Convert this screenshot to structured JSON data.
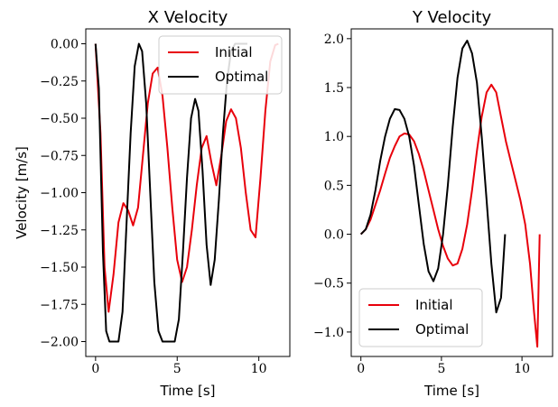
{
  "chart_data": [
    {
      "type": "line",
      "title": "X Velocity",
      "xlabel": "Time [s]",
      "ylabel": "Velocity [m/s]",
      "xlim": [
        -0.6,
        11.9
      ],
      "ylim": [
        -2.1,
        0.1
      ],
      "xticks": [
        0,
        5,
        10
      ],
      "yticks": [
        0.0,
        -0.25,
        -0.5,
        -0.75,
        -1.0,
        -1.25,
        -1.5,
        -1.75,
        -2.0
      ],
      "ytick_labels": [
        "0.00",
        "−0.25",
        "−0.50",
        "−0.75",
        "−1.00",
        "−1.25",
        "−1.50",
        "−1.75",
        "−2.00"
      ],
      "legend": "top-right",
      "series": [
        {
          "name": "Initial",
          "color": "#e8000b",
          "x": [
            0,
            0.3,
            0.55,
            0.8,
            1.1,
            1.4,
            1.7,
            2.0,
            2.3,
            2.6,
            2.9,
            3.2,
            3.5,
            3.8,
            4.1,
            4.4,
            4.7,
            5.0,
            5.3,
            5.6,
            5.9,
            6.2,
            6.5,
            6.8,
            7.1,
            7.4,
            7.7,
            8.0,
            8.3,
            8.6,
            8.9,
            9.2,
            9.5,
            9.8,
            10.1,
            10.4,
            10.7,
            11.0,
            11.2
          ],
          "y": [
            0,
            -0.6,
            -1.5,
            -1.8,
            -1.55,
            -1.2,
            -1.07,
            -1.12,
            -1.22,
            -1.1,
            -0.75,
            -0.4,
            -0.2,
            -0.16,
            -0.35,
            -0.7,
            -1.1,
            -1.45,
            -1.6,
            -1.5,
            -1.25,
            -0.95,
            -0.7,
            -0.62,
            -0.8,
            -0.95,
            -0.75,
            -0.52,
            -0.44,
            -0.5,
            -0.7,
            -1.0,
            -1.25,
            -1.3,
            -0.9,
            -0.45,
            -0.12,
            -0.01,
            0
          ]
        },
        {
          "name": "Optimal",
          "color": "#000000",
          "x": [
            0,
            0.2,
            0.45,
            0.65,
            0.85,
            1.1,
            1.4,
            1.65,
            1.9,
            2.15,
            2.4,
            2.65,
            2.85,
            3.1,
            3.35,
            3.6,
            3.85,
            4.1,
            4.35,
            4.6,
            4.85,
            5.1,
            5.35,
            5.6,
            5.85,
            6.1,
            6.3,
            6.55,
            6.8,
            7.05,
            7.3,
            7.55,
            7.8,
            8.05,
            8.3,
            8.55,
            8.8,
            9.05,
            9.3
          ],
          "y": [
            0,
            -0.3,
            -1.4,
            -1.93,
            -2.0,
            -2.0,
            -2.0,
            -1.8,
            -1.2,
            -0.6,
            -0.15,
            0.0,
            -0.05,
            -0.4,
            -1.0,
            -1.6,
            -1.93,
            -2.0,
            -2.0,
            -2.0,
            -2.0,
            -1.85,
            -1.4,
            -0.9,
            -0.5,
            -0.37,
            -0.45,
            -0.85,
            -1.35,
            -1.62,
            -1.45,
            -1.05,
            -0.6,
            -0.25,
            -0.05,
            0.0,
            0.0,
            0.0,
            0.0
          ]
        }
      ]
    },
    {
      "type": "line",
      "title": "Y Velocity",
      "xlabel": "Time [s]",
      "ylabel": "",
      "xlim": [
        -0.6,
        11.9
      ],
      "ylim": [
        -1.25,
        2.1
      ],
      "xticks": [
        0,
        5,
        10
      ],
      "yticks": [
        2.0,
        1.5,
        1.0,
        0.5,
        0.0,
        -0.5,
        -1.0
      ],
      "ytick_labels": [
        "2.0",
        "1.5",
        "1.0",
        "0.5",
        "0.0",
        "−0.5",
        "−1.0"
      ],
      "legend": "bottom-left",
      "series": [
        {
          "name": "Initial",
          "color": "#e8000b",
          "x": [
            0,
            0.3,
            0.6,
            0.9,
            1.2,
            1.5,
            1.8,
            2.1,
            2.4,
            2.7,
            3.0,
            3.3,
            3.6,
            3.9,
            4.2,
            4.5,
            4.8,
            5.1,
            5.4,
            5.7,
            6.0,
            6.3,
            6.6,
            6.9,
            7.2,
            7.5,
            7.8,
            8.1,
            8.4,
            8.7,
            9.0,
            9.3,
            9.6,
            9.9,
            10.2,
            10.5,
            10.75,
            10.95,
            11.1
          ],
          "y": [
            0,
            0.05,
            0.15,
            0.3,
            0.45,
            0.62,
            0.78,
            0.9,
            1.0,
            1.03,
            1.02,
            0.95,
            0.82,
            0.65,
            0.45,
            0.25,
            0.05,
            -0.12,
            -0.25,
            -0.32,
            -0.3,
            -0.15,
            0.1,
            0.45,
            0.85,
            1.2,
            1.45,
            1.53,
            1.45,
            1.2,
            0.95,
            0.75,
            0.55,
            0.35,
            0.1,
            -0.3,
            -0.8,
            -1.15,
            0.0
          ]
        },
        {
          "name": "Optimal",
          "color": "#000000",
          "x": [
            0,
            0.3,
            0.6,
            0.9,
            1.2,
            1.5,
            1.8,
            2.1,
            2.4,
            2.7,
            3.0,
            3.3,
            3.6,
            3.9,
            4.2,
            4.5,
            4.8,
            5.1,
            5.4,
            5.7,
            6.0,
            6.3,
            6.6,
            6.9,
            7.2,
            7.5,
            7.8,
            8.1,
            8.4,
            8.7,
            8.95
          ],
          "y": [
            0,
            0.05,
            0.2,
            0.45,
            0.75,
            1.0,
            1.18,
            1.28,
            1.27,
            1.18,
            1.0,
            0.7,
            0.3,
            -0.1,
            -0.38,
            -0.48,
            -0.35,
            0.0,
            0.5,
            1.1,
            1.6,
            1.9,
            1.98,
            1.85,
            1.55,
            1.0,
            0.35,
            -0.3,
            -0.8,
            -0.65,
            0.0
          ]
        }
      ]
    }
  ]
}
